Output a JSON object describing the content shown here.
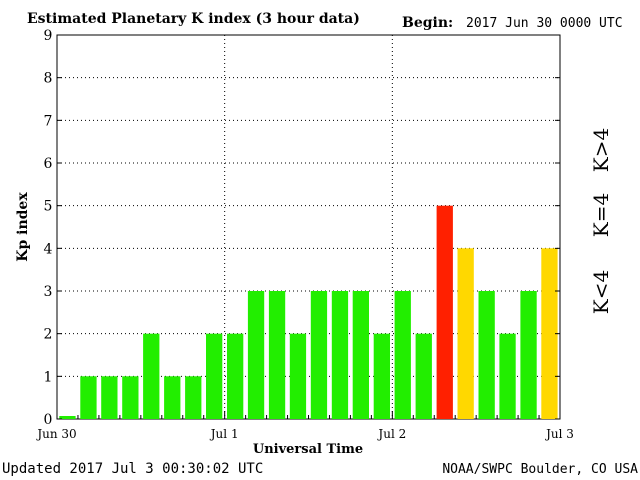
{
  "header": {
    "title": "Estimated Planetary K index (3 hour data)",
    "begin_label": "Begin:",
    "begin_value": "2017 Jun 30 0000 UTC"
  },
  "footer": {
    "updated": "Updated 2017 Jul  3 00:30:02 UTC",
    "source": "NOAA/SWPC Boulder, CO USA"
  },
  "legend": {
    "items": [
      {
        "label": "K>4",
        "color": "#ff2000"
      },
      {
        "label": "K=4",
        "color": "#ffd800"
      },
      {
        "label": "K<4",
        "color": "#22ee00"
      }
    ]
  },
  "chart_data": {
    "type": "bar",
    "title": "Estimated Planetary K index (3 hour data)",
    "xlabel": "Universal Time",
    "ylabel": "Kp index",
    "ylim": [
      0,
      9
    ],
    "y_ticks": [
      0,
      1,
      2,
      3,
      4,
      5,
      6,
      7,
      8,
      9
    ],
    "x_tick_labels": [
      "Jun 30",
      "Jul 1",
      "Jul 2",
      "Jul 3"
    ],
    "grid": true,
    "interval_hours": 3,
    "values": [
      0,
      1,
      1,
      1,
      2,
      1,
      1,
      2,
      2,
      3,
      3,
      2,
      3,
      3,
      3,
      2,
      3,
      2,
      5,
      4,
      3,
      2,
      3,
      4
    ],
    "colors": {
      "below_4": "#22ee00",
      "equal_4": "#ffd800",
      "above_4": "#ff2000"
    }
  }
}
